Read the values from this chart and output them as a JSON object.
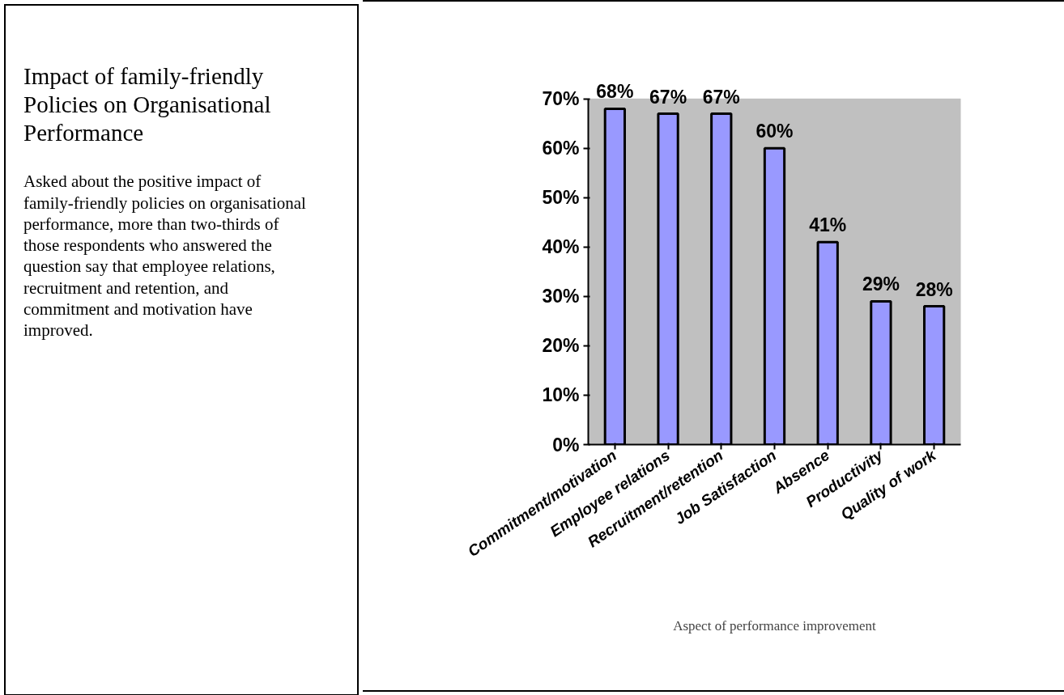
{
  "chart_data": {
    "type": "bar",
    "title": "Impact of family-friendly Policies on Organisational Performance",
    "subtitle": "Asked about the positive impact of family-friendly policies on organisational performance, more than two-thirds of those respondents who answered the question say that employee relations, recruitment and retention, and commitment and motivation have improved.",
    "xlabel": "Aspect of performance improvement",
    "categories": [
      "Commitment/motivation",
      "Employee relations",
      "Recruitment/retention",
      "Job Satisfaction",
      "Absence",
      "Productivity",
      "Quality of work"
    ],
    "values": [
      68,
      67,
      67,
      60,
      41,
      29,
      28
    ],
    "color": "#9999ff",
    "value_labels": [
      "68%",
      "67%",
      "67%",
      "60%",
      "41%",
      "29%",
      "28%"
    ],
    "ylim": [
      0,
      70
    ],
    "yticks": [
      {
        "value": 0,
        "label": "0%"
      },
      {
        "value": 10,
        "label": "10%"
      },
      {
        "value": 20,
        "label": "20%"
      },
      {
        "value": 30,
        "label": "30%"
      },
      {
        "value": 40,
        "label": "40%"
      },
      {
        "value": 50,
        "label": "50%"
      },
      {
        "value": 60,
        "label": "60%"
      },
      {
        "value": 70,
        "label": "70%"
      }
    ],
    "grid": false
  }
}
